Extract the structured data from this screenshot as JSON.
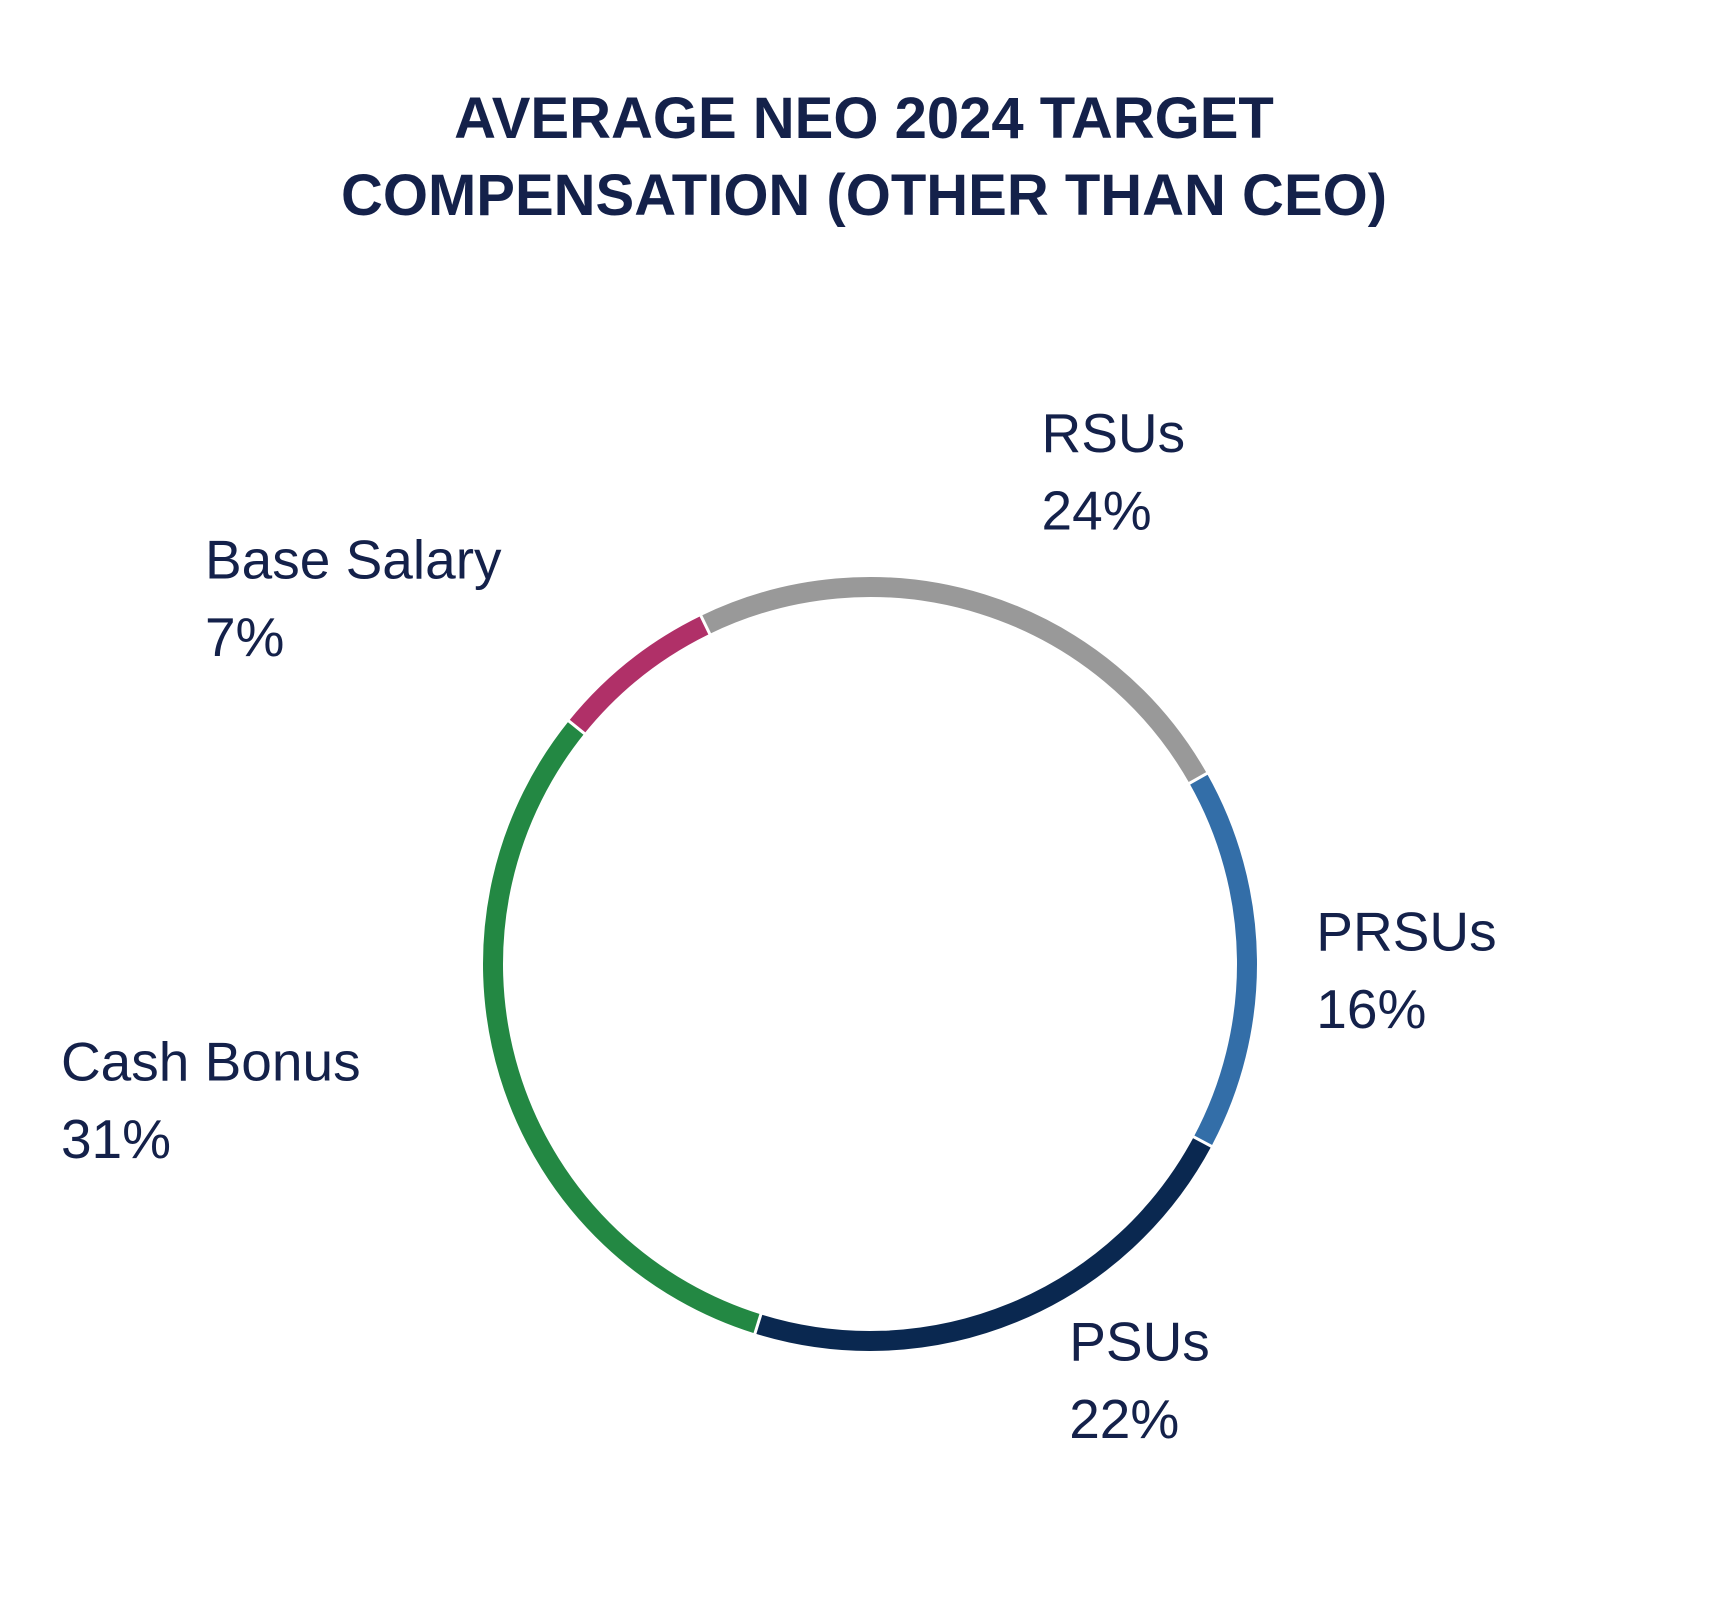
{
  "chart_data": {
    "type": "donut",
    "title": "AVERAGE NEO 2024 TARGET COMPENSATION (OTHER THAN CEO)",
    "categories": [
      "RSUs",
      "PRSUs",
      "PSUs",
      "Cash Bonus",
      "Base Salary"
    ],
    "values": [
      24,
      16,
      22,
      31,
      7
    ],
    "value_labels": [
      "24%",
      "16%",
      "22%",
      "31%",
      "7%"
    ],
    "colors": [
      "#999999",
      "#336ea8",
      "#0a2850",
      "#238843",
      "#b03068"
    ]
  }
}
